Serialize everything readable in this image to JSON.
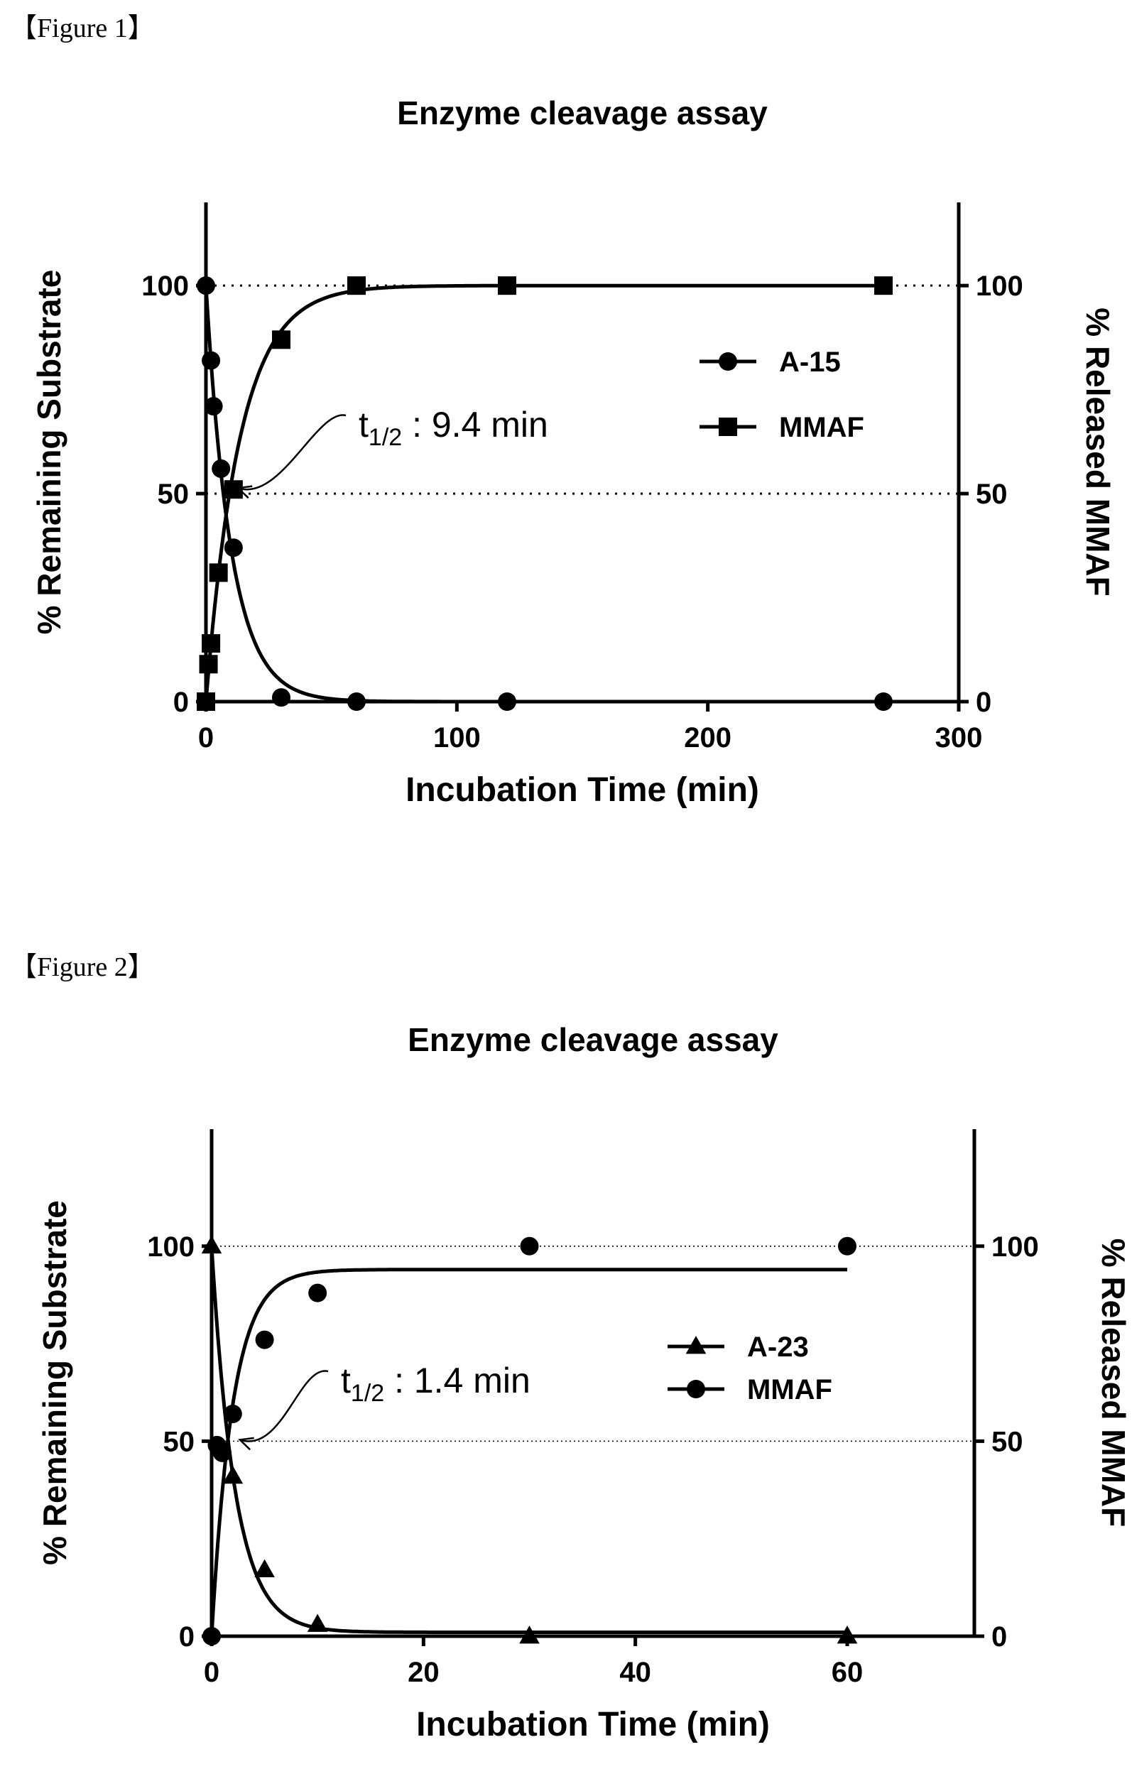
{
  "figures": [
    {
      "label": "【Figure 1】",
      "chart_data": {
        "type": "scatter",
        "title": "Enzyme cleavage assay",
        "xlabel": "Incubation Time (min)",
        "ylabel_left": "% Remaining Substrate",
        "ylabel_right": "% Released MMAF",
        "xlim": [
          0,
          300
        ],
        "ylim": [
          0,
          120
        ],
        "x_ticks": [
          0,
          100,
          200,
          300
        ],
        "y_ticks": [
          0,
          50,
          100
        ],
        "reference_lines": [
          50,
          100
        ],
        "annotation": {
          "prefix": "t",
          "subscript": "1/2",
          "text": " : 9.4 min",
          "target": [
            10,
            51
          ]
        },
        "legend_position": "center-right",
        "series": [
          {
            "name": "A-15",
            "marker": "circle",
            "points": [
              [
                0,
                100
              ],
              [
                2,
                82
              ],
              [
                3,
                71
              ],
              [
                6,
                56
              ],
              [
                11,
                37
              ],
              [
                30,
                1
              ],
              [
                60,
                0
              ],
              [
                120,
                0
              ],
              [
                270,
                0
              ]
            ],
            "curve": {
              "form": "decay",
              "amplitude": 100,
              "k": 0.1,
              "offset": 0
            }
          },
          {
            "name": "MMAF",
            "marker": "square",
            "points": [
              [
                0,
                0
              ],
              [
                1,
                9
              ],
              [
                2,
                14
              ],
              [
                5,
                31
              ],
              [
                11,
                51
              ],
              [
                30,
                87
              ],
              [
                60,
                100
              ],
              [
                120,
                100
              ],
              [
                270,
                100
              ]
            ],
            "curve": {
              "form": "rise",
              "plateau": 100,
              "k": 0.074,
              "offset": 0
            }
          }
        ]
      }
    },
    {
      "label": "【Figure 2】",
      "chart_data": {
        "type": "scatter",
        "title": "Enzyme cleavage assay",
        "xlabel": "Incubation Time (min)",
        "ylabel_left": "% Remaining Substrate",
        "ylabel_right": "% Released MMAF",
        "xlim": [
          0,
          72
        ],
        "ylim": [
          0,
          130
        ],
        "x_ticks": [
          0,
          20,
          40,
          60
        ],
        "y_ticks": [
          0,
          50,
          100
        ],
        "reference_lines": [
          50,
          100
        ],
        "annotation": {
          "prefix": "t",
          "subscript": "1/2",
          "text": " : 1.4 min",
          "target": [
            2,
            50
          ]
        },
        "legend_position": "center-right",
        "series": [
          {
            "name": "A-23",
            "marker": "triangle",
            "points": [
              [
                0,
                100
              ],
              [
                2,
                41
              ],
              [
                5,
                17
              ],
              [
                10,
                3
              ],
              [
                30,
                0
              ],
              [
                60,
                0
              ]
            ],
            "curve": {
              "form": "decay",
              "amplitude": 99,
              "k": 0.45,
              "offset": 1
            }
          },
          {
            "name": "MMAF",
            "marker": "circle",
            "points": [
              [
                0,
                0
              ],
              [
                0.5,
                49
              ],
              [
                1,
                47
              ],
              [
                2,
                57
              ],
              [
                5,
                76
              ],
              [
                10,
                88
              ],
              [
                30,
                100
              ],
              [
                60,
                100
              ]
            ],
            "curve": {
              "form": "rise",
              "plateau": 94,
              "k": 0.5,
              "offset": 0
            }
          }
        ]
      }
    }
  ]
}
